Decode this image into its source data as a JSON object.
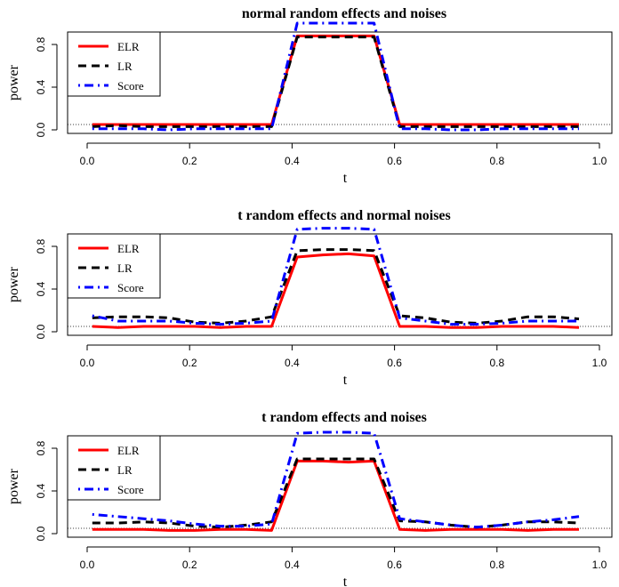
{
  "chart_data": [
    {
      "type": "line",
      "title": "normal random effects and noises",
      "xlabel": "t",
      "ylabel": "power",
      "xlim": [
        0,
        1
      ],
      "ylim": [
        0,
        1
      ],
      "xticks": [
        "0.0",
        "0.2",
        "0.4",
        "0.6",
        "0.8",
        "1.0"
      ],
      "yticks": [
        "0.0",
        "0.4",
        "0.8"
      ],
      "reference_line": 0.05,
      "legend": "top-left",
      "x": [
        0.01,
        0.06,
        0.11,
        0.16,
        0.21,
        0.26,
        0.31,
        0.36,
        0.41,
        0.46,
        0.51,
        0.56,
        0.61,
        0.66,
        0.71,
        0.76,
        0.81,
        0.86,
        0.91,
        0.96
      ],
      "series": [
        {
          "name": "ELR",
          "color": "#ff0000",
          "style": "solid",
          "values": [
            0.05,
            0.05,
            0.05,
            0.05,
            0.05,
            0.05,
            0.05,
            0.05,
            0.88,
            0.88,
            0.88,
            0.88,
            0.05,
            0.05,
            0.05,
            0.05,
            0.05,
            0.05,
            0.05,
            0.05
          ]
        },
        {
          "name": "LR",
          "color": "#000000",
          "style": "dashed",
          "values": [
            0.03,
            0.04,
            0.03,
            0.03,
            0.03,
            0.03,
            0.03,
            0.03,
            0.87,
            0.87,
            0.87,
            0.87,
            0.03,
            0.03,
            0.03,
            0.03,
            0.03,
            0.03,
            0.03,
            0.03
          ]
        },
        {
          "name": "Score",
          "color": "#0000ff",
          "style": "dotdash",
          "values": [
            0.01,
            0.01,
            0.01,
            0.0,
            0.01,
            0.01,
            0.01,
            0.01,
            1.0,
            1.0,
            1.0,
            1.0,
            0.01,
            0.01,
            0.0,
            0.0,
            0.01,
            0.01,
            0.01,
            0.01
          ]
        }
      ]
    },
    {
      "type": "line",
      "title": "t random effects and normal noises",
      "xlabel": "t",
      "ylabel": "power",
      "xlim": [
        0,
        1
      ],
      "ylim": [
        0,
        1
      ],
      "xticks": [
        "0.0",
        "0.2",
        "0.4",
        "0.6",
        "0.8",
        "1.0"
      ],
      "yticks": [
        "0.0",
        "0.4",
        "0.8"
      ],
      "reference_line": 0.05,
      "legend": "top-left",
      "x": [
        0.01,
        0.06,
        0.11,
        0.16,
        0.21,
        0.26,
        0.31,
        0.36,
        0.41,
        0.46,
        0.51,
        0.56,
        0.61,
        0.66,
        0.71,
        0.76,
        0.81,
        0.86,
        0.91,
        0.96
      ],
      "series": [
        {
          "name": "ELR",
          "color": "#ff0000",
          "style": "solid",
          "values": [
            0.05,
            0.04,
            0.05,
            0.05,
            0.05,
            0.04,
            0.05,
            0.05,
            0.7,
            0.72,
            0.73,
            0.71,
            0.05,
            0.05,
            0.04,
            0.04,
            0.05,
            0.05,
            0.05,
            0.04
          ]
        },
        {
          "name": "LR",
          "color": "#000000",
          "style": "dashed",
          "values": [
            0.13,
            0.14,
            0.14,
            0.13,
            0.09,
            0.08,
            0.1,
            0.14,
            0.76,
            0.77,
            0.77,
            0.76,
            0.15,
            0.13,
            0.09,
            0.08,
            0.1,
            0.14,
            0.14,
            0.12
          ]
        },
        {
          "name": "Score",
          "color": "#0000ff",
          "style": "dotdash",
          "values": [
            0.15,
            0.1,
            0.1,
            0.1,
            0.08,
            0.07,
            0.08,
            0.1,
            0.96,
            0.97,
            0.97,
            0.96,
            0.13,
            0.1,
            0.07,
            0.07,
            0.08,
            0.1,
            0.1,
            0.1
          ]
        }
      ]
    },
    {
      "type": "line",
      "title": "t random effects and noises",
      "xlabel": "t",
      "ylabel": "power",
      "xlim": [
        0,
        1
      ],
      "ylim": [
        0,
        1
      ],
      "xticks": [
        "0.0",
        "0.2",
        "0.4",
        "0.6",
        "0.8",
        "1.0"
      ],
      "yticks": [
        "0.0",
        "0.4",
        "0.8"
      ],
      "reference_line": 0.05,
      "legend": "top-left",
      "x": [
        0.01,
        0.06,
        0.11,
        0.16,
        0.21,
        0.26,
        0.31,
        0.36,
        0.41,
        0.46,
        0.51,
        0.56,
        0.61,
        0.66,
        0.71,
        0.76,
        0.81,
        0.86,
        0.91,
        0.96
      ],
      "series": [
        {
          "name": "ELR",
          "color": "#ff0000",
          "style": "solid",
          "values": [
            0.04,
            0.04,
            0.04,
            0.03,
            0.03,
            0.04,
            0.04,
            0.03,
            0.68,
            0.68,
            0.67,
            0.68,
            0.04,
            0.03,
            0.04,
            0.04,
            0.04,
            0.03,
            0.04,
            0.04
          ]
        },
        {
          "name": "LR",
          "color": "#000000",
          "style": "dashed",
          "values": [
            0.1,
            0.1,
            0.11,
            0.1,
            0.07,
            0.06,
            0.08,
            0.11,
            0.7,
            0.7,
            0.7,
            0.7,
            0.12,
            0.11,
            0.08,
            0.06,
            0.08,
            0.11,
            0.11,
            0.1
          ]
        },
        {
          "name": "Score",
          "color": "#0000ff",
          "style": "dotdash",
          "values": [
            0.18,
            0.16,
            0.14,
            0.12,
            0.09,
            0.07,
            0.07,
            0.09,
            0.94,
            0.95,
            0.95,
            0.94,
            0.14,
            0.11,
            0.08,
            0.06,
            0.08,
            0.11,
            0.13,
            0.16
          ]
        }
      ]
    }
  ]
}
